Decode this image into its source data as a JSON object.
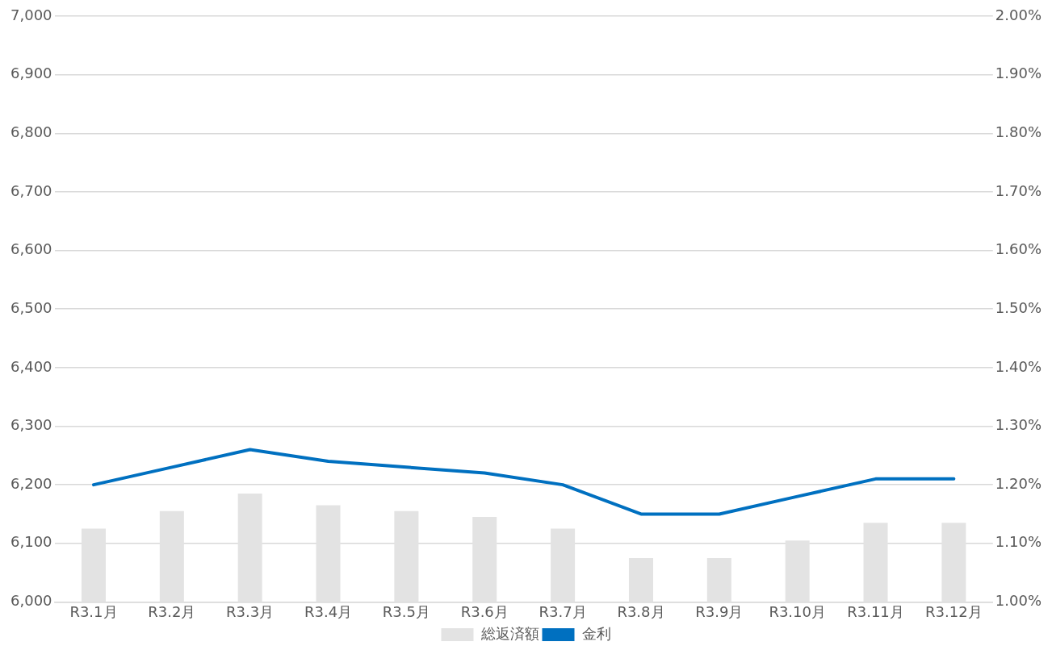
{
  "chart_data": {
    "type": "bar",
    "categories": [
      "R3.1月",
      "R3.2月",
      "R3.3月",
      "R3.4月",
      "R3.5月",
      "R3.6月",
      "R3.7月",
      "R3.8月",
      "R3.9月",
      "R3.10月",
      "R3.11月",
      "R3.12月"
    ],
    "series": [
      {
        "name": "総返済額",
        "color": "#e3e3e3",
        "values": [
          6125,
          6155,
          6185,
          6165,
          6155,
          6145,
          6125,
          6075,
          6075,
          6105,
          6135,
          6135
        ]
      },
      {
        "name": "金利",
        "type": "line",
        "axis": "y2",
        "color": "#0070c0",
        "values": [
          1.2,
          1.23,
          1.26,
          1.24,
          1.23,
          1.22,
          1.2,
          1.15,
          1.15,
          1.18,
          1.21,
          1.21
        ]
      }
    ],
    "ylim": [
      6000,
      7000
    ],
    "yticks": [
      {
        "value": 6000,
        "label": "6,000"
      },
      {
        "value": 6100,
        "label": "6,100"
      },
      {
        "value": 6200,
        "label": "6,200"
      },
      {
        "value": 6300,
        "label": "6,300"
      },
      {
        "value": 6400,
        "label": "6,400"
      },
      {
        "value": 6500,
        "label": "6,500"
      },
      {
        "value": 6600,
        "label": "6,600"
      },
      {
        "value": 6700,
        "label": "6,700"
      },
      {
        "value": 6800,
        "label": "6,800"
      },
      {
        "value": 6900,
        "label": "6,900"
      },
      {
        "value": 7000,
        "label": "7,000"
      }
    ],
    "y2lim": [
      1,
      2
    ],
    "y2ticks": [
      {
        "value": 1,
        "label": "1.00%"
      },
      {
        "value": 1.1,
        "label": "1.10%"
      },
      {
        "value": 1.2,
        "label": "1.20%"
      },
      {
        "value": 1.3,
        "label": "1.30%"
      },
      {
        "value": 1.4,
        "label": "1.40%"
      },
      {
        "value": 1.5,
        "label": "1.50%"
      },
      {
        "value": 1.6,
        "label": "1.60%"
      },
      {
        "value": 1.7,
        "label": "1.70%"
      },
      {
        "value": 1.8,
        "label": "1.80%"
      },
      {
        "value": 1.9,
        "label": "1.90%"
      },
      {
        "value": 2,
        "label": "2.00%"
      }
    ],
    "grid": "y",
    "legend": "bottom",
    "marker": "none",
    "line_style": "solid"
  }
}
